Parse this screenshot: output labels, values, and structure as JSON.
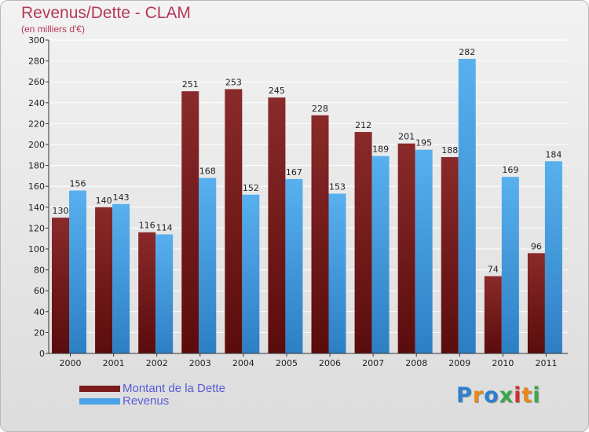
{
  "chart_data": {
    "type": "bar",
    "title": "Revenus/Dette - CLAM",
    "subtitle": "(en milliers d'€)",
    "categories": [
      "2000",
      "2001",
      "2002",
      "2003",
      "2004",
      "2005",
      "2006",
      "2007",
      "2008",
      "2009",
      "2010",
      "2011"
    ],
    "series": [
      {
        "name": "Montant de la Dette",
        "color": "#7a1c1c",
        "values": [
          130,
          140,
          116,
          251,
          253,
          245,
          228,
          212,
          201,
          188,
          74,
          96
        ]
      },
      {
        "name": "Revenus",
        "color": "#4aa3e6",
        "values": [
          156,
          143,
          114,
          168,
          152,
          167,
          153,
          189,
          195,
          282,
          169,
          184
        ]
      }
    ],
    "ylim": [
      0,
      300
    ],
    "yticks": [
      0,
      20,
      40,
      60,
      80,
      100,
      120,
      140,
      160,
      180,
      200,
      220,
      240,
      260,
      280,
      300
    ],
    "grid": true,
    "legend_position": "bottom-left",
    "xlabel": "",
    "ylabel": ""
  },
  "logo": {
    "text": "Proxiti",
    "letters": [
      "P",
      "r",
      "o",
      "x",
      "i",
      "t",
      "i"
    ],
    "colors": [
      "#2e7fd0",
      "#e8891a",
      "#2e7fd0",
      "#3aa84a",
      "#d62f2f",
      "#e8891a",
      "#3aa84a"
    ]
  }
}
